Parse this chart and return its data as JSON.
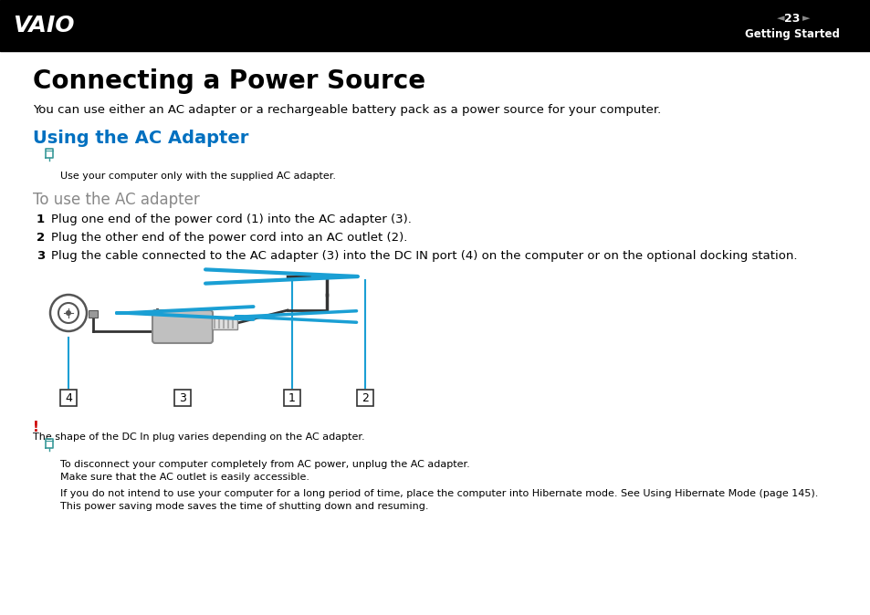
{
  "header_bg": "#000000",
  "page_bg": "#ffffff",
  "header_page_num": "23",
  "header_section": "Getting Started",
  "main_title": "Connecting a Power Source",
  "intro_text": "You can use either an AC adapter or a rechargeable battery pack as a power source for your computer.",
  "section_title": "Using the AC Adapter",
  "section_title_color": "#0070c0",
  "note_icon_color": "#3a9a9a",
  "note_text": "Use your computer only with the supplied AC adapter.",
  "subsection_title": "To use the AC adapter",
  "step1": "Plug one end of the power cord (1) into the AC adapter (3).",
  "step2": "Plug the other end of the power cord into an AC outlet (2).",
  "step3_pre": "Plug the cable connected to the AC adapter (3) into the ",
  "step3_bold": "DC IN",
  "step3_post": " port (4) on the computer or on the optional docking station.",
  "warning_color": "#cc0000",
  "warning_text": "The shape of the DC In plug varies depending on the AC adapter.",
  "note2_text": "To disconnect your computer completely from AC power, unplug the AC adapter.",
  "note3_text": "Make sure that the AC outlet is easily accessible.",
  "note4_pre": "If you do not intend to use your computer for a long period of time, place the computer into Hibernate mode. See ",
  "note4_bold": "Using Hibernate Mode",
  "note4_link": " (page 145)",
  "note4_link_color": "#0070c0",
  "note4_post": ".",
  "note5_text": "This power saving mode saves the time of shutting down and resuming.",
  "arrow_color": "#1a9fd4",
  "body_text_color": "#000000",
  "gray_text_color": "#888888",
  "diagram_gray": "#aaaaaa",
  "diagram_dark": "#333333",
  "diagram_med": "#777777"
}
